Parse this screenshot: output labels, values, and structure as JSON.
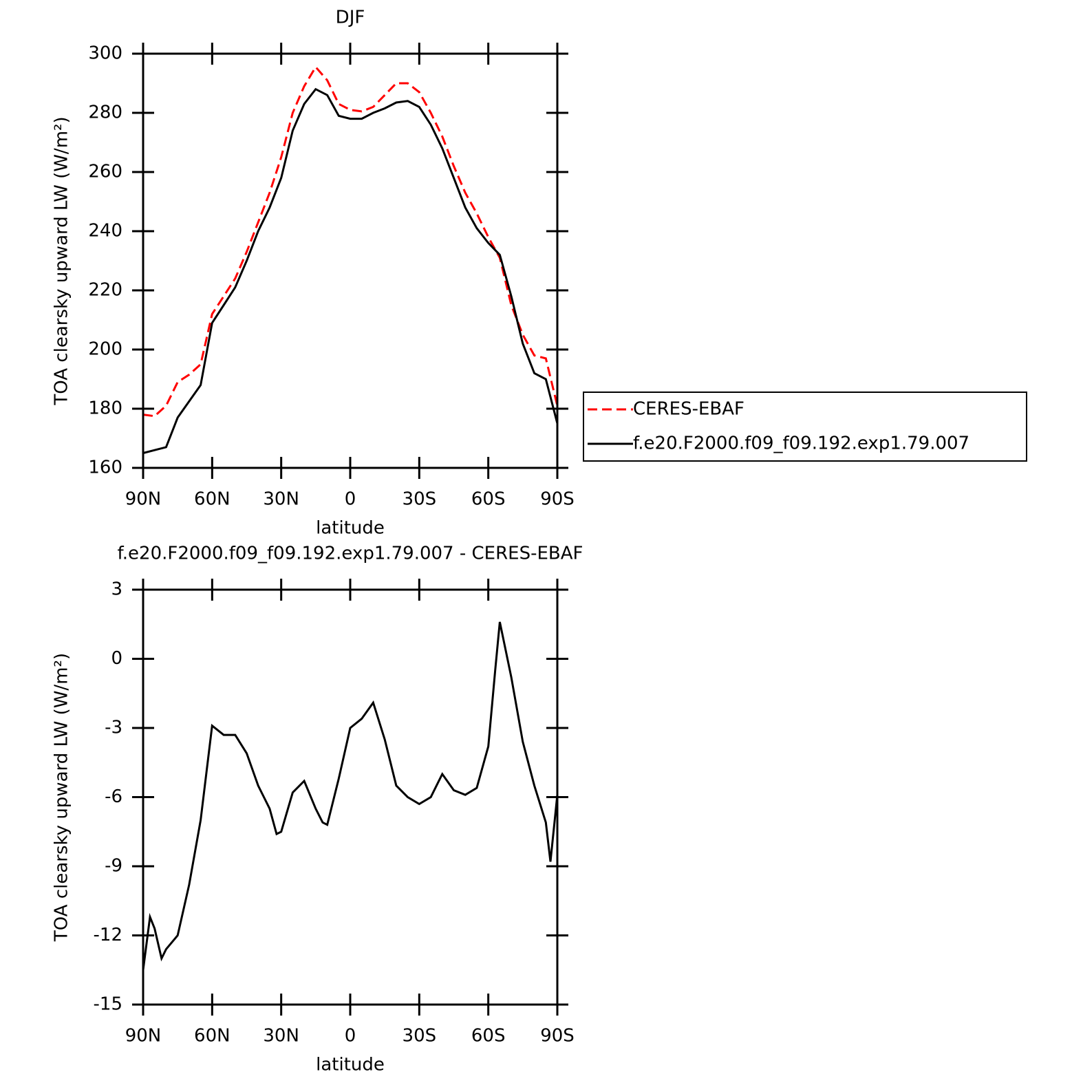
{
  "chart_data": [
    {
      "type": "line",
      "title": "DJF",
      "xlabel": "latitude",
      "ylabel": "TOA clearsky upward LW (W/m²)",
      "x": [
        90,
        85,
        80,
        75,
        70,
        65,
        60,
        55,
        50,
        45,
        40,
        35,
        30,
        25,
        20,
        15,
        10,
        5,
        0,
        -5,
        -10,
        -15,
        -20,
        -25,
        -30,
        -35,
        -40,
        -45,
        -50,
        -55,
        -60,
        -65,
        -70,
        -75,
        -80,
        -85,
        -90
      ],
      "series": [
        {
          "name": "CERES-EBAF",
          "color": "#ff0000",
          "dashed": true,
          "values": [
            178,
            177.5,
            181,
            189,
            191.5,
            195,
            212,
            218,
            224,
            233,
            243,
            253,
            265,
            280,
            289,
            295.5,
            291,
            283,
            281,
            280.5,
            282,
            286,
            290,
            290,
            287,
            280,
            272,
            262,
            253,
            246,
            238,
            231,
            215,
            205,
            198,
            197,
            181
          ]
        },
        {
          "name": "f.e20.F2000.f09_f09.192.exp1.79.007",
          "color": "#000000",
          "dashed": false,
          "values": [
            165,
            166,
            167,
            177,
            182.5,
            188,
            209,
            215,
            221,
            230,
            240,
            248,
            258,
            274,
            283,
            288,
            286,
            279,
            278,
            278,
            280,
            281.5,
            283.5,
            284,
            282,
            276,
            268,
            258,
            248,
            241,
            236,
            232,
            218,
            202,
            192,
            190,
            175
          ]
        }
      ],
      "xlim": [
        90,
        -90
      ],
      "xticks": [
        {
          "value": 90,
          "label": "90N"
        },
        {
          "value": 60,
          "label": "60N"
        },
        {
          "value": 30,
          "label": "30N"
        },
        0,
        {
          "value": -30,
          "label": "30S"
        },
        {
          "value": -60,
          "label": "60S"
        },
        {
          "value": -90,
          "label": "90S"
        }
      ],
      "ylim": [
        160,
        300
      ],
      "yticks": [
        160,
        180,
        200,
        220,
        240,
        260,
        280,
        300
      ],
      "legend": "outside-right"
    },
    {
      "type": "line",
      "title": "f.e20.F2000.f09_f09.192.exp1.79.007 - CERES-EBAF",
      "xlabel": "latitude",
      "ylabel": "TOA clearsky upward LW (W/m²)",
      "x": [
        90,
        87,
        85,
        82,
        80,
        75,
        70,
        65,
        60,
        55,
        50,
        45,
        40,
        35,
        32,
        30,
        25,
        20,
        15,
        12,
        10,
        5,
        0,
        -5,
        -10,
        -15,
        -20,
        -25,
        -30,
        -35,
        -40,
        -45,
        -50,
        -55,
        -60,
        -63,
        -65,
        -70,
        -75,
        -80,
        -85,
        -87,
        -90
      ],
      "series": [
        {
          "color": "#000000",
          "dashed": false,
          "values": [
            -13.5,
            -11.2,
            -11.7,
            -13.0,
            -12.6,
            -12.0,
            -9.8,
            -7.0,
            -2.9,
            -3.3,
            -3.3,
            -4.1,
            -5.5,
            -6.5,
            -7.6,
            -7.5,
            -5.8,
            -5.3,
            -6.5,
            -7.1,
            -7.2,
            -5.2,
            -3.0,
            -2.6,
            -1.9,
            -3.5,
            -5.5,
            -6.0,
            -6.3,
            -6.0,
            -5.0,
            -5.7,
            -5.9,
            -5.6,
            -3.8,
            -0.5,
            1.6,
            -0.8,
            -3.6,
            -5.5,
            -7.1,
            -8.8,
            -5.9
          ]
        }
      ],
      "xlim": [
        90,
        -90
      ],
      "xticks": [
        {
          "value": 90,
          "label": "90N"
        },
        {
          "value": 60,
          "label": "60N"
        },
        {
          "value": 30,
          "label": "30N"
        },
        0,
        {
          "value": -30,
          "label": "30S"
        },
        {
          "value": -60,
          "label": "60S"
        },
        {
          "value": -90,
          "label": "90S"
        }
      ],
      "ylim": [
        -15,
        3
      ],
      "yticks": [
        -15,
        -12,
        -9,
        -6,
        -3,
        0,
        3
      ]
    }
  ]
}
